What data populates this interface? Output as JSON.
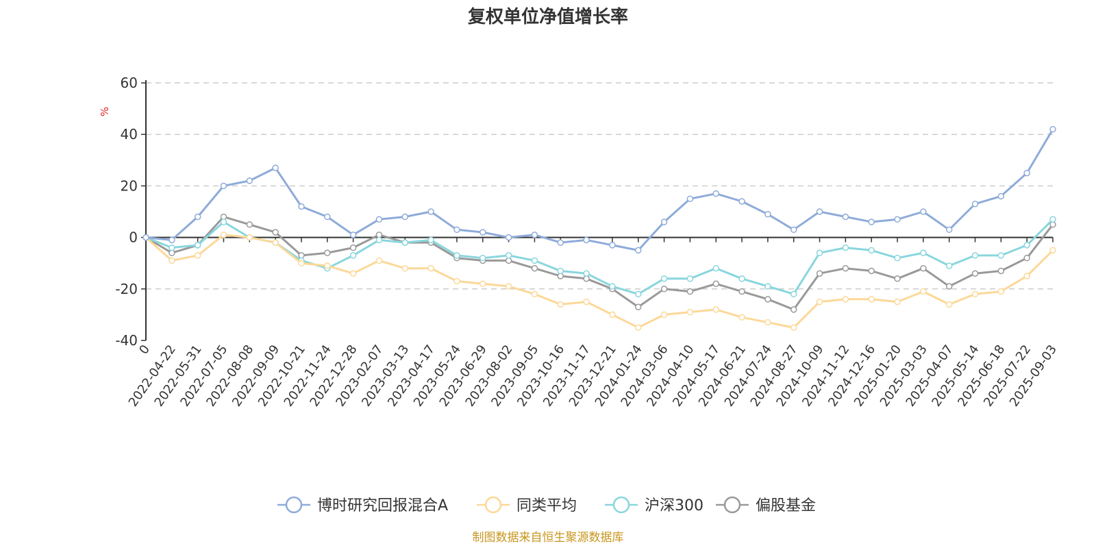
{
  "chart_data": {
    "type": "line",
    "title": "复权单位净值增长率",
    "ylabel": "%",
    "ylim": [
      -40,
      60
    ],
    "yticks": [
      60,
      40,
      20,
      0,
      -20,
      -40
    ],
    "grid": true,
    "legend_position": "bottom",
    "x_labels": [
      "0",
      "2022-04-22",
      "2022-05-31",
      "2022-07-05",
      "2022-08-08",
      "2022-09-09",
      "2022-10-21",
      "2022-11-24",
      "2022-12-28",
      "2023-02-07",
      "2023-03-13",
      "2023-04-17",
      "2023-05-24",
      "2023-06-29",
      "2023-08-02",
      "2023-09-05",
      "2023-10-16",
      "2023-11-17",
      "2023-12-21",
      "2024-01-24",
      "2024-03-06",
      "2024-04-10",
      "2024-05-17",
      "2024-06-21",
      "2024-07-24",
      "2024-08-27",
      "2024-10-09",
      "2024-11-12",
      "2024-12-16",
      "2025-01-20",
      "2025-03-03",
      "2025-04-07",
      "2025-05-14",
      "2025-06-18",
      "2025-07-22",
      "2025-09-03"
    ],
    "series": [
      {
        "name": "博时研究回报混合A",
        "color": "#8eabd9",
        "values": [
          0,
          -1,
          8,
          20,
          22,
          27,
          12,
          8,
          1,
          7,
          8,
          10,
          3,
          2,
          0,
          1,
          -2,
          -1,
          -3,
          -5,
          6,
          15,
          17,
          14,
          9,
          3,
          10,
          8,
          6,
          7,
          10,
          3,
          13,
          16,
          25,
          42
        ]
      },
      {
        "name": "同类平均",
        "color": "#fcd898",
        "values": [
          0,
          -9,
          -7,
          1,
          0,
          -2,
          -10,
          -11,
          -14,
          -9,
          -12,
          -12,
          -17,
          -18,
          -19,
          -22,
          -26,
          -25,
          -30,
          -35,
          -30,
          -29,
          -28,
          -31,
          -33,
          -35,
          -25,
          -24,
          -24,
          -25,
          -21,
          -26,
          -22,
          -21,
          -15,
          -5
        ]
      },
      {
        "name": "沪深300",
        "color": "#89d6dd",
        "values": [
          0,
          -4,
          -3,
          6,
          0,
          -2,
          -9,
          -12,
          -7,
          -1,
          -2,
          -1,
          -7,
          -8,
          -7,
          -9,
          -13,
          -14,
          -19,
          -22,
          -16,
          -16,
          -12,
          -16,
          -19,
          -22,
          -6,
          -4,
          -5,
          -8,
          -6,
          -11,
          -7,
          -7,
          -3,
          7
        ]
      },
      {
        "name": "偏股基金",
        "color": "#999999",
        "values": [
          0,
          -6,
          -3,
          8,
          5,
          2,
          -7,
          -6,
          -4,
          1,
          -2,
          -2,
          -8,
          -9,
          -9,
          -12,
          -15,
          -16,
          -20,
          -27,
          -20,
          -21,
          -18,
          -21,
          -24,
          -28,
          -14,
          -12,
          -13,
          -16,
          -12,
          -19,
          -14,
          -13,
          -8,
          5
        ]
      }
    ]
  },
  "footer": {
    "source": "制图数据来自恒生聚源数据库"
  }
}
